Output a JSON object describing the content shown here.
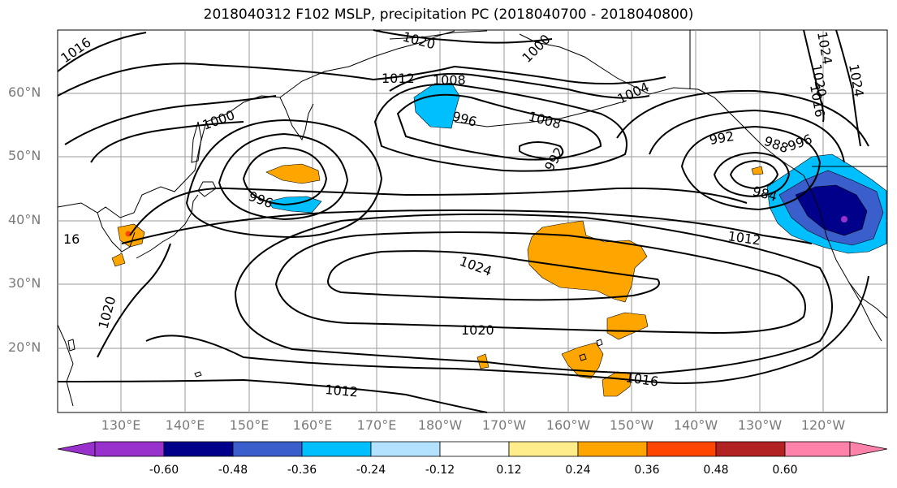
{
  "title": "2018040312 F102 MSLP, precipitation PC (2018040700 - 2018040800)",
  "lat_labels": [
    "60°N",
    "50°N",
    "40°N",
    "30°N",
    "20°N"
  ],
  "lon_labels": [
    "130°E",
    "140°E",
    "150°E",
    "160°E",
    "170°E",
    "180°W",
    "170°W",
    "160°W",
    "150°W",
    "140°W",
    "130°W",
    "120°W"
  ],
  "contour_labels": [
    "1016",
    "1020",
    "1012",
    "1008",
    "996",
    "1000",
    "1008",
    "1004",
    "1000",
    "992",
    "992",
    "988",
    "996",
    "984",
    "996",
    "1012",
    "1024",
    "1020",
    "1016",
    "1012",
    "1016",
    "1020",
    "1024",
    "1020",
    "1024",
    "16"
  ],
  "colorbar": {
    "ticks": [
      "-0.60",
      "-0.48",
      "-0.36",
      "-0.24",
      "-0.12",
      "0.12",
      "0.24",
      "0.36",
      "0.48",
      "0.60"
    ],
    "colors": [
      "#9932cc",
      "#00008b",
      "#3a5fcd",
      "#00bfff",
      "#b2e2ff",
      "#ffffff",
      "#ffec8b",
      "#ffa500",
      "#ff4500",
      "#b22222",
      "#ff82ab"
    ]
  }
}
